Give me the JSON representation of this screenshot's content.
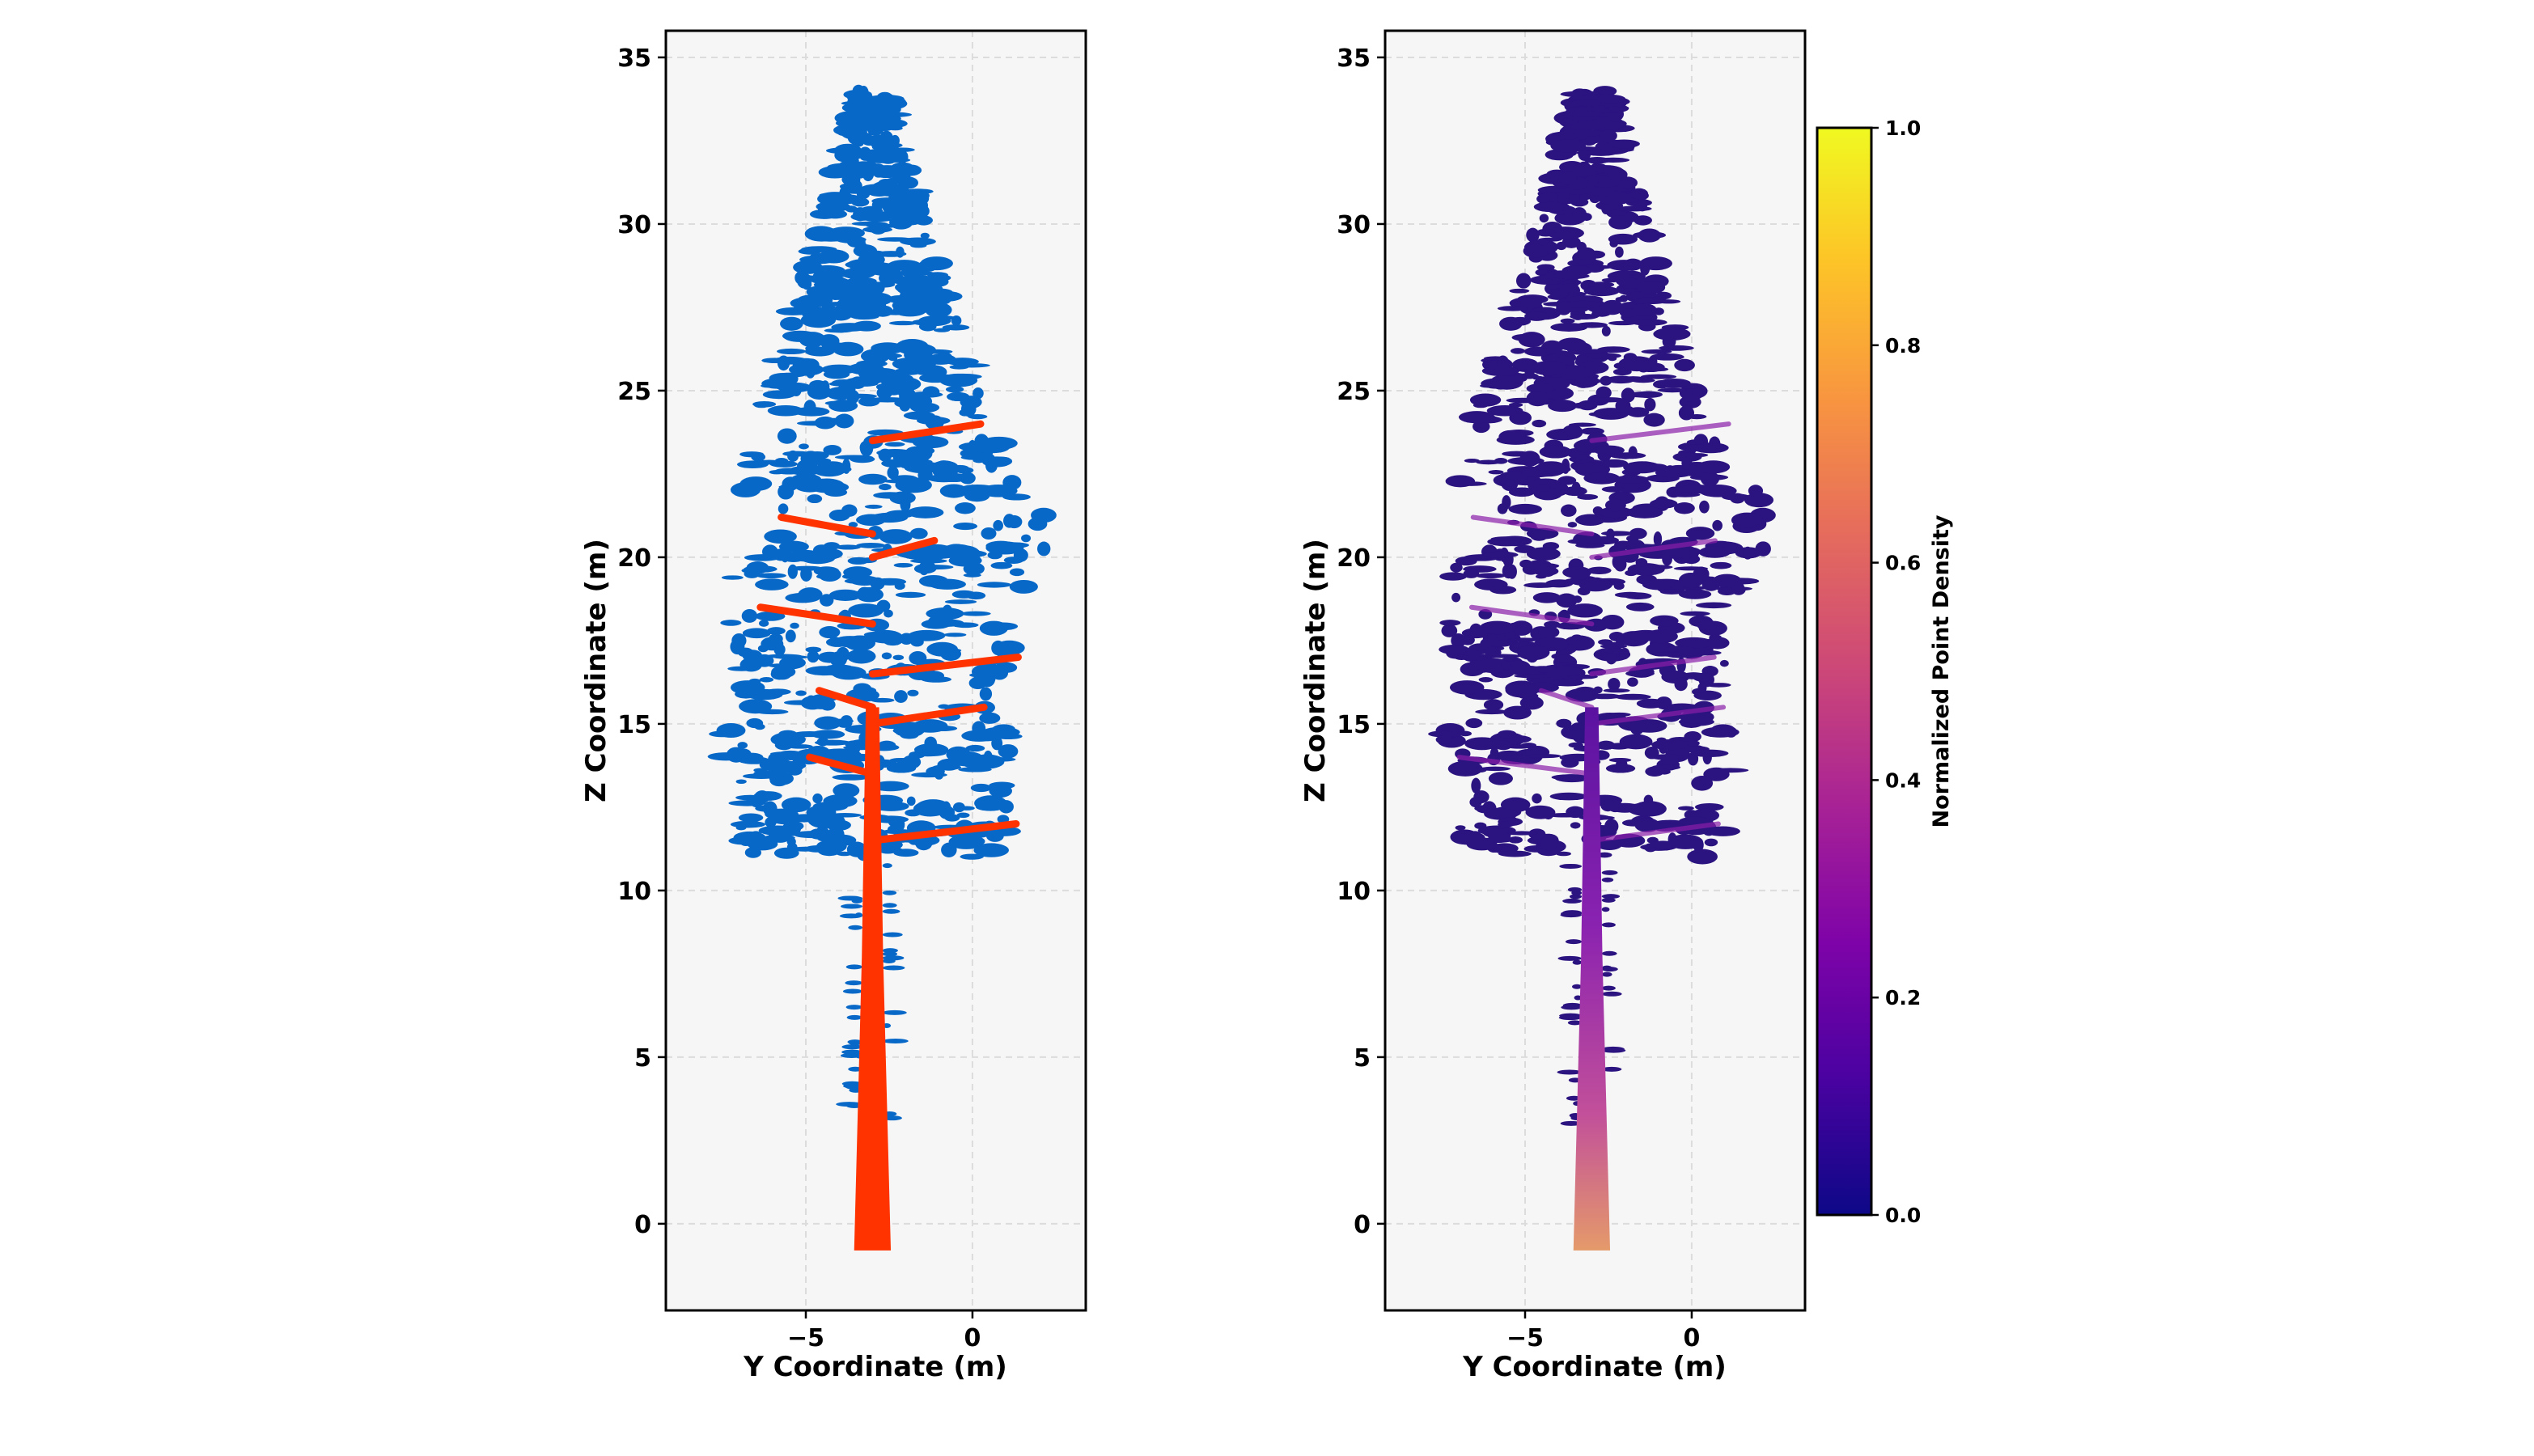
{
  "chart_data": [
    {
      "type": "scatter",
      "title": "",
      "xlabel": "Y Coordinate (m)",
      "ylabel": "Z Coordinate (m)",
      "xlim": [
        -9.2,
        3.4
      ],
      "ylim": [
        -2.6,
        35.8
      ],
      "xticks": [
        -5,
        0
      ],
      "xtick_labels": [
        "−5",
        "0"
      ],
      "yticks": [
        0,
        5,
        10,
        15,
        20,
        25,
        30,
        35
      ],
      "ytick_labels": [
        "0",
        "5",
        "10",
        "15",
        "20",
        "25",
        "30",
        "35"
      ],
      "grid": true,
      "legend": "none",
      "series": [
        {
          "color": "#0868c8",
          "points_desc": "foliage",
          "extent_y": [
            -8.3,
            2.9
          ],
          "extent_z": [
            10.8,
            34.0
          ]
        },
        {
          "color": "#ff3300",
          "points_desc": "stem and branches",
          "extent_y": [
            -7.6,
            1.7
          ],
          "extent_z": [
            -0.8,
            24.2
          ]
        }
      ],
      "colors": {
        "background": "#f6f6f6",
        "foliage": "#0868c8",
        "wood": "#ff3300"
      }
    },
    {
      "type": "scatter",
      "title": "",
      "xlabel": "Y Coordinate (m)",
      "ylabel": "Z Coordinate (m)",
      "xlim": [
        -9.2,
        3.4
      ],
      "ylim": [
        -2.6,
        35.8
      ],
      "xticks": [
        -5,
        0
      ],
      "xtick_labels": [
        "−5",
        "0"
      ],
      "yticks": [
        0,
        5,
        10,
        15,
        20,
        25,
        30,
        35
      ],
      "ytick_labels": [
        "0",
        "5",
        "10",
        "15",
        "20",
        "25",
        "30",
        "35"
      ],
      "grid": true,
      "legend": "none",
      "colormap": "plasma",
      "colorbar": {
        "label": "Normalized Point Density",
        "range": [
          0.0,
          1.0
        ],
        "ticks": [
          0.0,
          0.2,
          0.4,
          0.6,
          0.8,
          1.0
        ],
        "tick_labels": [
          "0.0",
          "0.2",
          "0.4",
          "0.6",
          "0.8",
          "1.0"
        ]
      },
      "colors": {
        "background": "#f6f6f6",
        "low": "#2b1380",
        "mid": "#8a1ea8",
        "high": "#f0f921"
      }
    }
  ]
}
